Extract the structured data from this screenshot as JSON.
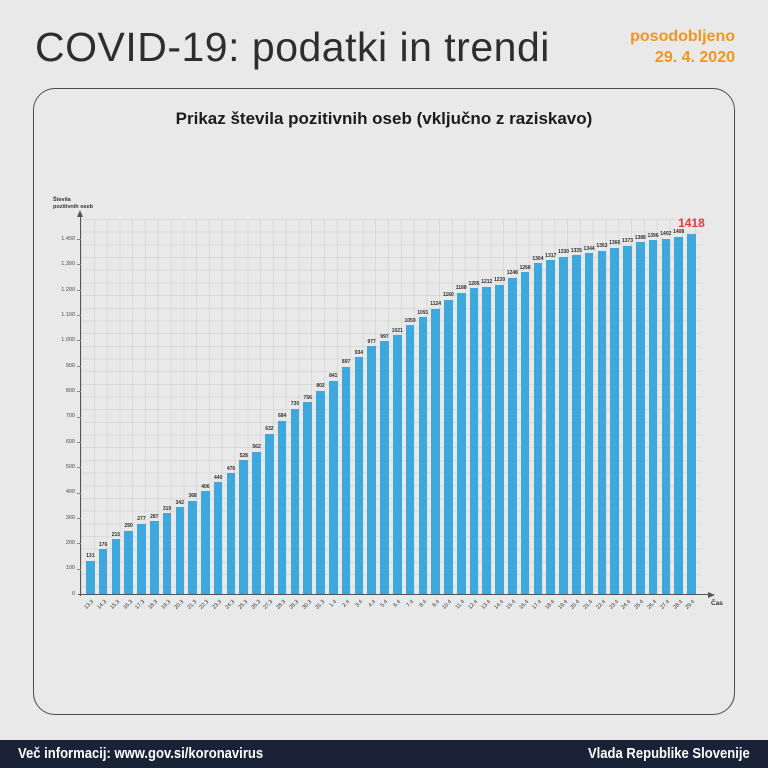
{
  "header": {
    "title": "COVID-19: podatki in trendi",
    "updated_label": "posodobljeno",
    "updated_date": "29. 4. 2020"
  },
  "chart": {
    "title": "Prikaz števila pozitivnih oseb (vključno z raziskavo)"
  },
  "chart_data": {
    "type": "bar",
    "title": "Prikaz števila pozitivnih oseb (vključno z raziskavo)",
    "xlabel": "Čas",
    "ylabel": "Števila pozitivnih oseb",
    "ylabel_lines": [
      "Števila",
      "pozitivnih oseb"
    ],
    "ylim": [
      0,
      1450
    ],
    "ytick_step": 100,
    "yticks_labels": [
      "0",
      "100",
      "200",
      "300",
      "400",
      "500",
      "600",
      "700",
      "800",
      "900",
      "1.000",
      "1.100",
      "1.200",
      "1.300",
      "1.400"
    ],
    "grid": "dotted",
    "legend": "none",
    "bar_color": "#3ea7dc",
    "final_value_color": "#e03c3c",
    "categories": [
      "13.3",
      "14.3",
      "15.3",
      "16.3",
      "17.3",
      "18.3",
      "19.3",
      "20.3",
      "21.3",
      "22.3",
      "23.3",
      "24.3",
      "25.3",
      "26.3",
      "27.3",
      "28.3",
      "29.3",
      "30.3",
      "31.3",
      "1.4",
      "2.4",
      "3.4",
      "4.4",
      "5.4",
      "6.4",
      "7.4",
      "8.4",
      "9.4",
      "10.4",
      "11.4",
      "12.4",
      "13.4",
      "14.4",
      "15.4",
      "16.4",
      "17.4",
      "18.4",
      "19.4",
      "20.4",
      "21.4",
      "22.4",
      "23.4",
      "24.4",
      "25.4",
      "26.4",
      "27.4",
      "28.4",
      "29.4"
    ],
    "values": [
      131,
      176,
      215,
      250,
      277,
      287,
      319,
      342,
      368,
      406,
      440,
      476,
      528,
      562,
      632,
      684,
      730,
      756,
      802,
      841,
      897,
      934,
      977,
      997,
      1021,
      1059,
      1091,
      1124,
      1160,
      1188,
      1205,
      1212,
      1220,
      1248,
      1268,
      1304,
      1317,
      1330,
      1335,
      1344,
      1353,
      1366,
      1373,
      1388,
      1396,
      1402,
      1408,
      1418
    ]
  },
  "footer": {
    "left": "Več informacij: www.gov.si/koronavirus",
    "right": "Vlada Republike Slovenije"
  },
  "colors": {
    "background": "#e9e9e9",
    "accent_orange": "#f2951d",
    "bar_blue": "#3ea7dc",
    "highlight_red": "#e03c3c",
    "footer_navy": "#1a2238"
  }
}
